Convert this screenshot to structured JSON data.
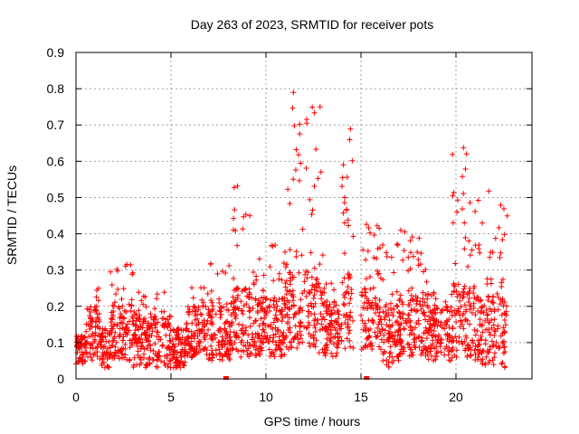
{
  "chart_data": {
    "type": "scatter",
    "title": "Day 263 of 2023, SRMTID for receiver pots",
    "xlabel": "GPS time / hours",
    "ylabel": "SRMTID / TECUs",
    "xlim": [
      0,
      24
    ],
    "ylim": [
      0,
      0.9
    ],
    "xticks": [
      0,
      5,
      10,
      15,
      20
    ],
    "yticks": [
      0,
      0.1,
      0.2,
      0.3,
      0.4,
      0.5,
      0.6,
      0.7,
      0.8,
      0.9
    ],
    "grid": true,
    "marker": "+",
    "color": "#ff0000",
    "series": [
      {
        "name": "SRMTID",
        "envelope_note": "approximate per-time-window value ranges read from the plot",
        "segments": [
          {
            "x_start": 0.0,
            "x_end": 0.5,
            "y_min": 0.04,
            "y_max": 0.12
          },
          {
            "x_start": 0.5,
            "x_end": 1.3,
            "y_min": 0.05,
            "y_max": 0.28
          },
          {
            "x_start": 1.3,
            "x_end": 1.8,
            "y_min": 0.03,
            "y_max": 0.14
          },
          {
            "x_start": 1.8,
            "x_end": 3.0,
            "y_min": 0.05,
            "y_max": 0.32
          },
          {
            "x_start": 3.0,
            "x_end": 5.0,
            "y_min": 0.03,
            "y_max": 0.24
          },
          {
            "x_start": 5.0,
            "x_end": 5.8,
            "y_min": 0.03,
            "y_max": 0.14
          },
          {
            "x_start": 5.8,
            "x_end": 7.0,
            "y_min": 0.05,
            "y_max": 0.26
          },
          {
            "x_start": 7.0,
            "x_end": 8.2,
            "y_min": 0.05,
            "y_max": 0.34
          },
          {
            "x_start": 8.2,
            "x_end": 9.2,
            "y_min": 0.06,
            "y_max": 0.56
          },
          {
            "x_start": 9.2,
            "x_end": 11.0,
            "y_min": 0.06,
            "y_max": 0.37
          },
          {
            "x_start": 11.0,
            "x_end": 12.2,
            "y_min": 0.08,
            "y_max": 0.82
          },
          {
            "x_start": 12.2,
            "x_end": 13.0,
            "y_min": 0.06,
            "y_max": 0.76
          },
          {
            "x_start": 13.0,
            "x_end": 14.0,
            "y_min": 0.06,
            "y_max": 0.28
          },
          {
            "x_start": 14.0,
            "x_end": 14.6,
            "y_min": 0.08,
            "y_max": 0.69
          },
          {
            "x_start": 15.0,
            "x_end": 16.0,
            "y_min": 0.08,
            "y_max": 0.43
          },
          {
            "x_start": 16.0,
            "x_end": 17.0,
            "y_min": 0.03,
            "y_max": 0.38
          },
          {
            "x_start": 17.0,
            "x_end": 18.5,
            "y_min": 0.06,
            "y_max": 0.41
          },
          {
            "x_start": 18.5,
            "x_end": 19.8,
            "y_min": 0.05,
            "y_max": 0.24
          },
          {
            "x_start": 19.8,
            "x_end": 21.0,
            "y_min": 0.06,
            "y_max": 0.64
          },
          {
            "x_start": 21.0,
            "x_end": 22.7,
            "y_min": 0.03,
            "y_max": 0.55
          }
        ]
      }
    ]
  }
}
